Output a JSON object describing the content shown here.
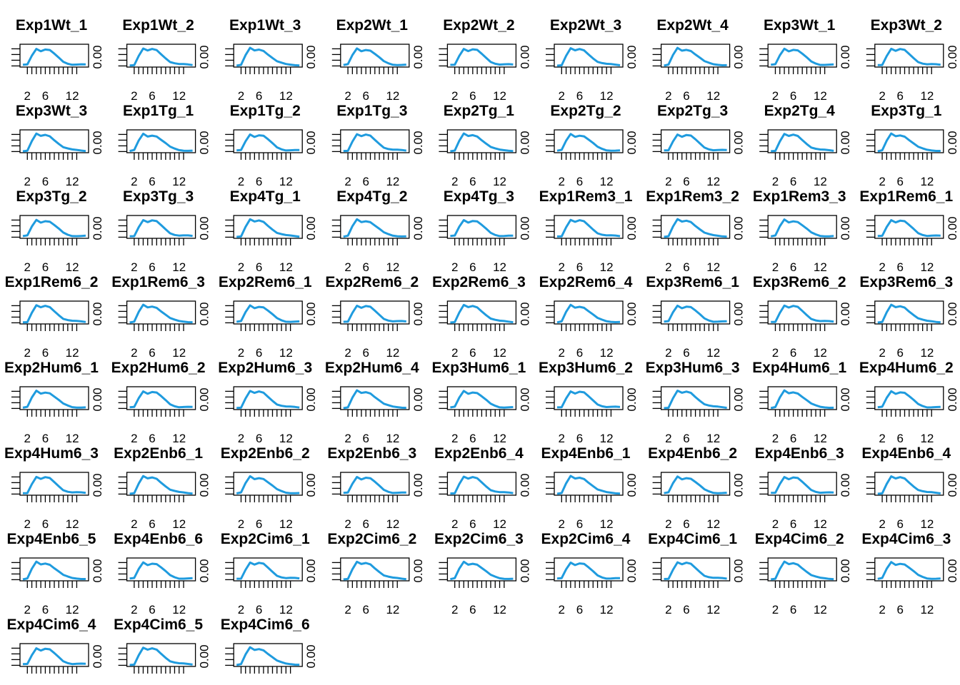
{
  "line_color": "#1f9bde",
  "chart_data": {
    "type": "line",
    "grid": false,
    "xlim": [
      1,
      15
    ],
    "x_tick_labels": [
      "2",
      "6",
      "12"
    ],
    "y_tick_label": "0.00",
    "x": [
      1,
      2,
      3,
      4,
      5,
      6,
      7,
      8,
      9,
      10,
      11,
      12,
      13,
      14,
      15
    ],
    "profile": [
      0.02,
      0.05,
      0.55,
      0.93,
      0.8,
      0.87,
      0.82,
      0.62,
      0.42,
      0.22,
      0.13,
      0.07,
      0.06,
      0.05,
      0.04
    ],
    "panels": [
      "Exp1Wt_1",
      "Exp1Wt_2",
      "Exp1Wt_3",
      "Exp2Wt_1",
      "Exp2Wt_2",
      "Exp2Wt_3",
      "Exp2Wt_4",
      "Exp3Wt_1",
      "Exp3Wt_2",
      "Exp3Wt_3",
      "Exp1Tg_1",
      "Exp1Tg_2",
      "Exp1Tg_3",
      "Exp2Tg_1",
      "Exp2Tg_2",
      "Exp2Tg_3",
      "Exp2Tg_4",
      "Exp3Tg_1",
      "Exp3Tg_2",
      "Exp3Tg_3",
      "Exp4Tg_1",
      "Exp4Tg_2",
      "Exp4Tg_3",
      "Exp1Rem3_1",
      "Exp1Rem3_2",
      "Exp1Rem3_3",
      "Exp1Rem6_1",
      "Exp1Rem6_2",
      "Exp1Rem6_3",
      "Exp2Rem6_1",
      "Exp2Rem6_2",
      "Exp2Rem6_3",
      "Exp2Rem6_4",
      "Exp3Rem6_1",
      "Exp3Rem6_2",
      "Exp3Rem6_3",
      "Exp2Hum6_1",
      "Exp2Hum6_2",
      "Exp2Hum6_3",
      "Exp2Hum6_4",
      "Exp3Hum6_1",
      "Exp3Hum6_2",
      "Exp3Hum6_3",
      "Exp4Hum6_1",
      "Exp4Hum6_2",
      "Exp4Hum6_3",
      "Exp2Enb6_1",
      "Exp2Enb6_2",
      "Exp2Enb6_3",
      "Exp2Enb6_4",
      "Exp4Enb6_1",
      "Exp4Enb6_2",
      "Exp4Enb6_3",
      "Exp4Enb6_4",
      "Exp4Enb6_5",
      "Exp4Enb6_6",
      "Exp2Cim6_1",
      "Exp2Cim6_2",
      "Exp2Cim6_3",
      "Exp2Cim6_4",
      "Exp4Cim6_1",
      "Exp4Cim6_2",
      "Exp4Cim6_3",
      "Exp4Cim6_4",
      "Exp4Cim6_5",
      "Exp4Cim6_6"
    ]
  }
}
